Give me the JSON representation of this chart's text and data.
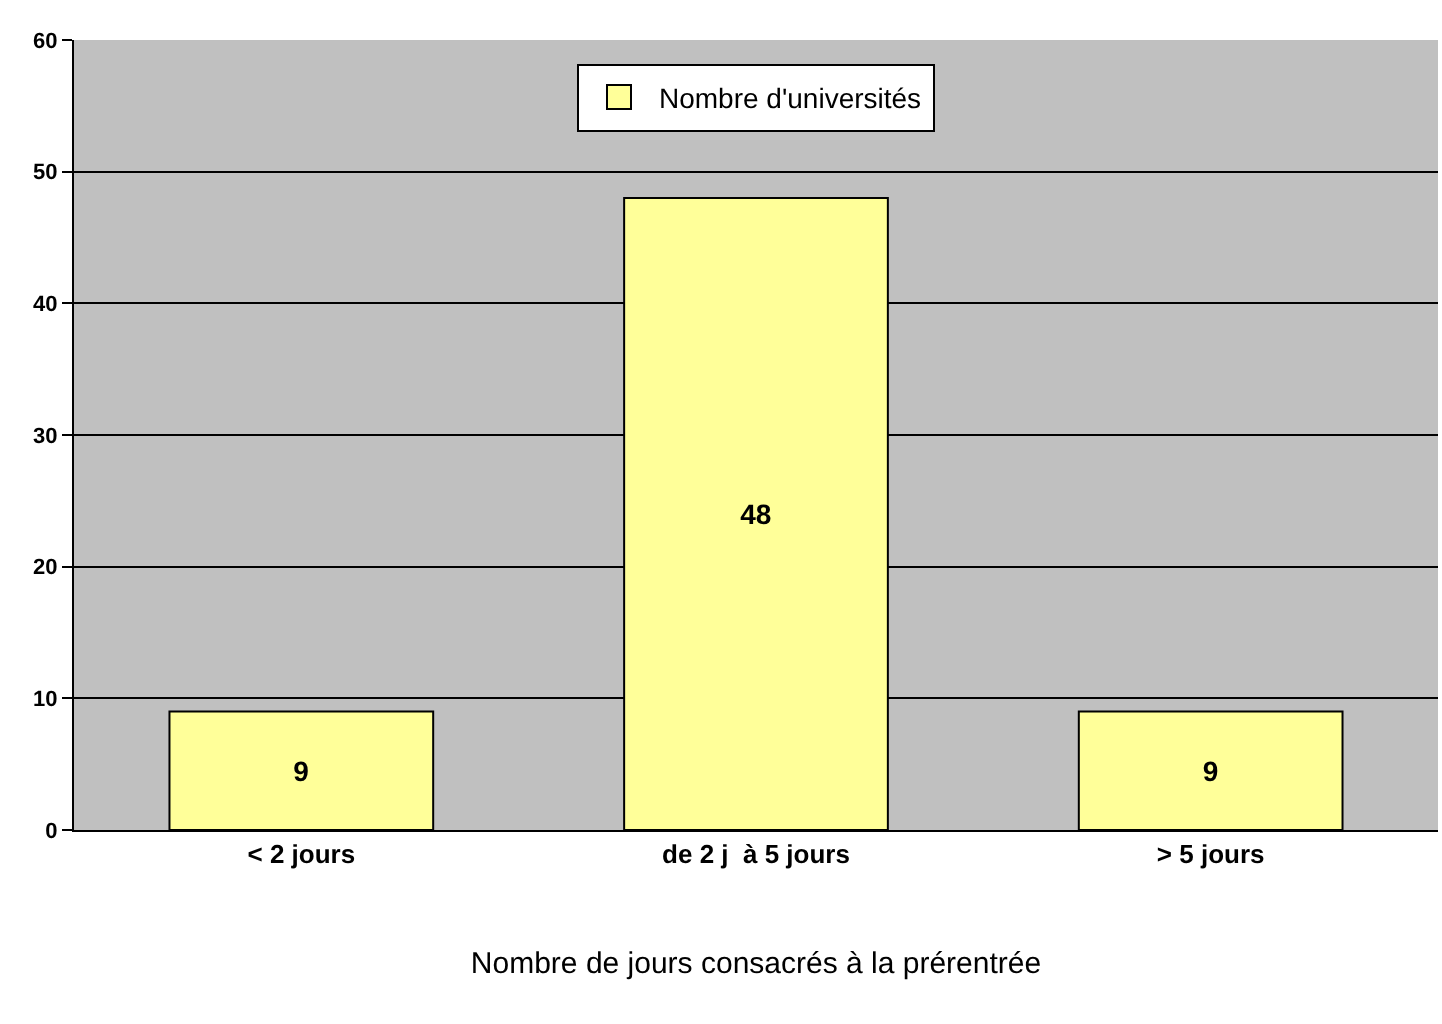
{
  "chart_data": {
    "type": "bar",
    "xlabel": "Nombre de jours consacrés à la prérentrée",
    "categories": [
      "< 2 jours",
      "de 2 j  à 5 jours",
      "> 5 jours"
    ],
    "series": [
      {
        "name": "Nombre d'universités",
        "color": "#ffff99",
        "values": [
          9,
          48,
          9
        ]
      }
    ],
    "ylim": [
      0,
      60
    ],
    "yticks": [
      0,
      10,
      20,
      30,
      40,
      50,
      60
    ],
    "grid": "y",
    "legend": "top",
    "data_labels": true
  }
}
